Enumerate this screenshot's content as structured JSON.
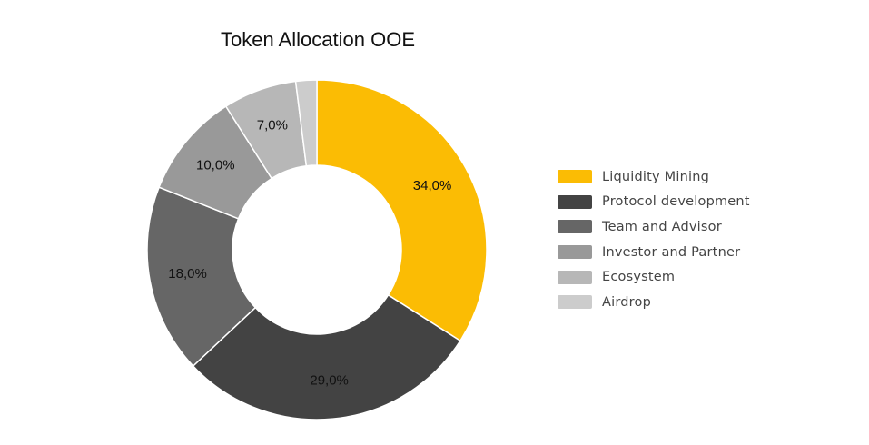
{
  "chart_data": {
    "type": "pie",
    "style": "donut",
    "title": "Token Allocation OOE",
    "labels": [
      "Liquidity Mining",
      "Protocol development",
      "Team and Advisor",
      "Investor and Partner",
      "Ecosystem",
      "Airdrop"
    ],
    "values": [
      34.0,
      29.0,
      18.0,
      10.0,
      7.0,
      2.0
    ],
    "value_labels": [
      "34,0%",
      "29,0%",
      "18,0%",
      "10,0%",
      "7,0%",
      ""
    ],
    "colors": [
      "#FBBC04",
      "#434343",
      "#666666",
      "#999999",
      "#B7B7B7",
      "#CCCCCC"
    ],
    "legend_position": "right",
    "start_angle": "top",
    "direction": "clockwise"
  }
}
